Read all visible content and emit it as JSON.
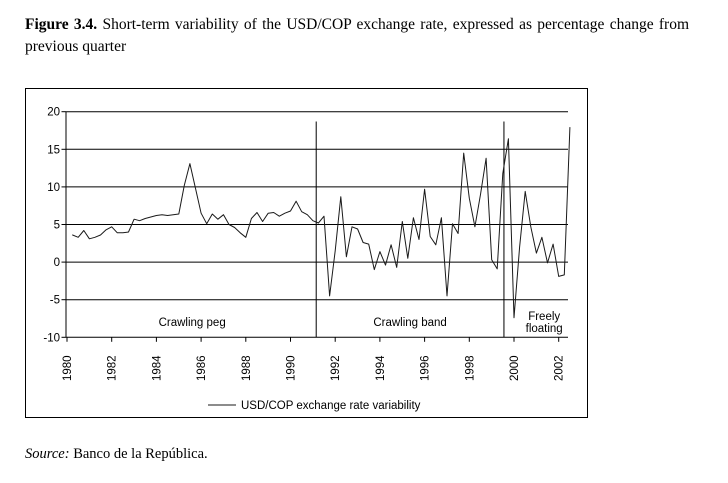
{
  "page": {
    "title_bold": "Figure 3.4.",
    "title_rest": "Short-term variability of the USD/COP exchange rate, expressed as percentage change from previous quarter",
    "source_label": "Source:",
    "source_text": "Banco de la República."
  },
  "chart_data": {
    "type": "line",
    "title": "Short-term variability of the USD/COP exchange rate, percentage change from previous quarter",
    "xlabel": "",
    "ylabel": "",
    "grid": true,
    "ylim": [
      -10,
      20
    ],
    "yticks": [
      20,
      15,
      10,
      5,
      0,
      -5,
      -10
    ],
    "xticks": [
      1980,
      1982,
      1984,
      1986,
      1988,
      1990,
      1992,
      1994,
      1996,
      1998,
      2000,
      2002
    ],
    "x_start": 1980.25,
    "x_step": 0.25,
    "frequency": "quarterly",
    "series": [
      {
        "name": "USD/COP exchange rate variability",
        "color": "#1a1a1a",
        "values": [
          3.6,
          3.3,
          4.2,
          3.1,
          3.3,
          3.6,
          4.3,
          4.7,
          3.9,
          3.9,
          4.0,
          5.7,
          5.5,
          5.8,
          6.0,
          6.2,
          6.3,
          6.2,
          6.3,
          6.4,
          10.2,
          13.1,
          9.8,
          6.5,
          5.1,
          6.4,
          5.7,
          6.3,
          5.0,
          4.6,
          3.9,
          3.3,
          5.8,
          6.6,
          5.4,
          6.5,
          6.6,
          6.1,
          6.5,
          6.8,
          8.1,
          6.7,
          6.3,
          5.5,
          5.2,
          6.1,
          -4.5,
          1.5,
          8.7,
          0.7,
          4.7,
          4.4,
          2.6,
          2.4,
          -1.0,
          1.4,
          -0.4,
          2.3,
          -0.7,
          5.4,
          0.5,
          5.9,
          3.0,
          9.7,
          3.4,
          2.3,
          5.9,
          -4.5,
          5.1,
          3.8,
          14.5,
          8.5,
          4.7,
          9.0,
          13.8,
          0.3,
          -0.9,
          11.8,
          16.4,
          -7.4,
          2.0,
          9.4,
          4.7,
          1.2,
          3.3,
          -0.1,
          2.4,
          -1.9,
          -1.7,
          17.9
        ]
      }
    ],
    "legend": {
      "position": "bottom",
      "label": "USD/COP exchange rate variability"
    },
    "regime_dividers": [
      {
        "x": 1991.15,
        "y_bottom": -10,
        "y_top": 18.7
      },
      {
        "x": 1999.55,
        "y_bottom": -10,
        "y_top": 18.7
      }
    ],
    "annotations": [
      {
        "text": "Crawling peg",
        "x": 1985.6,
        "y": -8.5
      },
      {
        "text": "Crawling band",
        "x": 1995.35,
        "y": -8.5
      },
      {
        "text": "Freely\nfloating",
        "x": 2001.35,
        "y": -8.5
      }
    ]
  }
}
